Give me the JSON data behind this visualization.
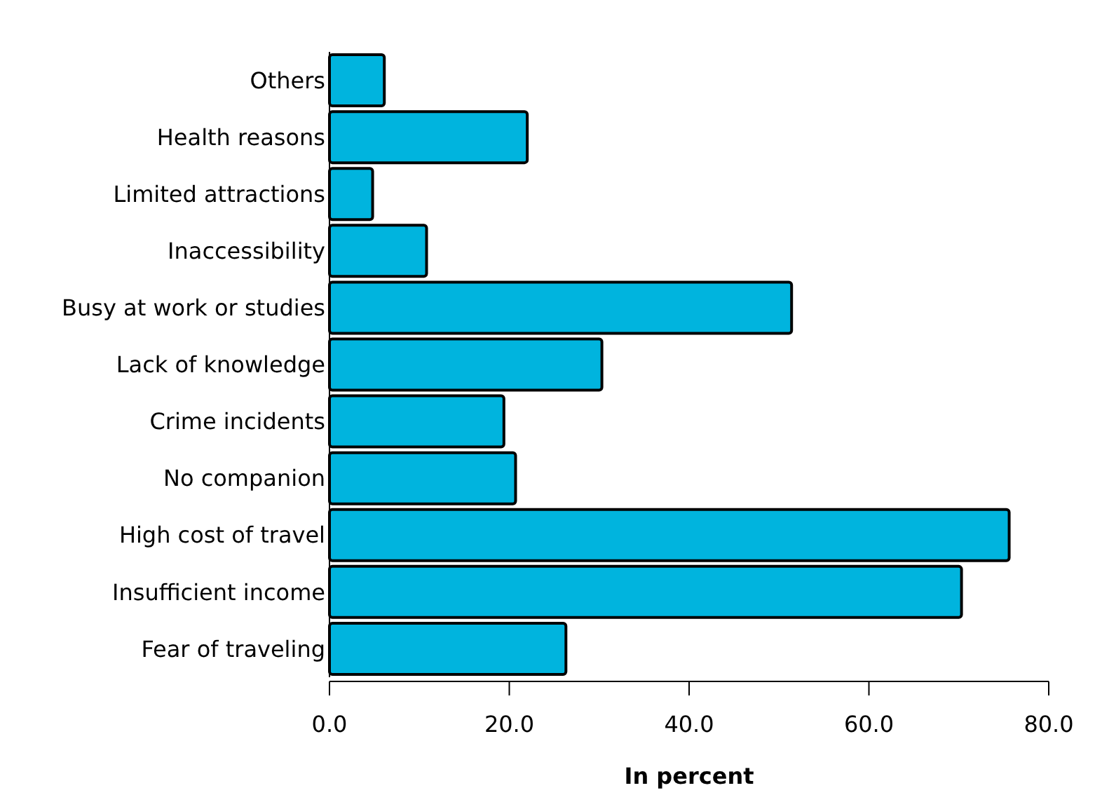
{
  "chart_data": {
    "type": "bar",
    "orientation": "horizontal",
    "xlabel": "In percent",
    "categories": [
      "Others",
      "Health reasons",
      "Limited attractions",
      "Inaccessibility",
      "Busy at work or studies",
      "Lack of knowledge",
      "Crime incidents",
      "No companion",
      "High cost of travel",
      "Insufficient income",
      "Fear of traveling"
    ],
    "values": [
      6.1,
      22.0,
      4.8,
      10.8,
      51.4,
      30.3,
      19.4,
      20.7,
      75.6,
      70.3,
      26.3
    ],
    "color": "#00b4de",
    "xlim": [
      0,
      80
    ],
    "xticks": [
      {
        "value": 0,
        "label": "0.0"
      },
      {
        "value": 20,
        "label": "20.0"
      },
      {
        "value": 40,
        "label": "40.0"
      },
      {
        "value": 60,
        "label": "60.0"
      },
      {
        "value": 80,
        "label": "80.0"
      }
    ],
    "grid": false
  }
}
